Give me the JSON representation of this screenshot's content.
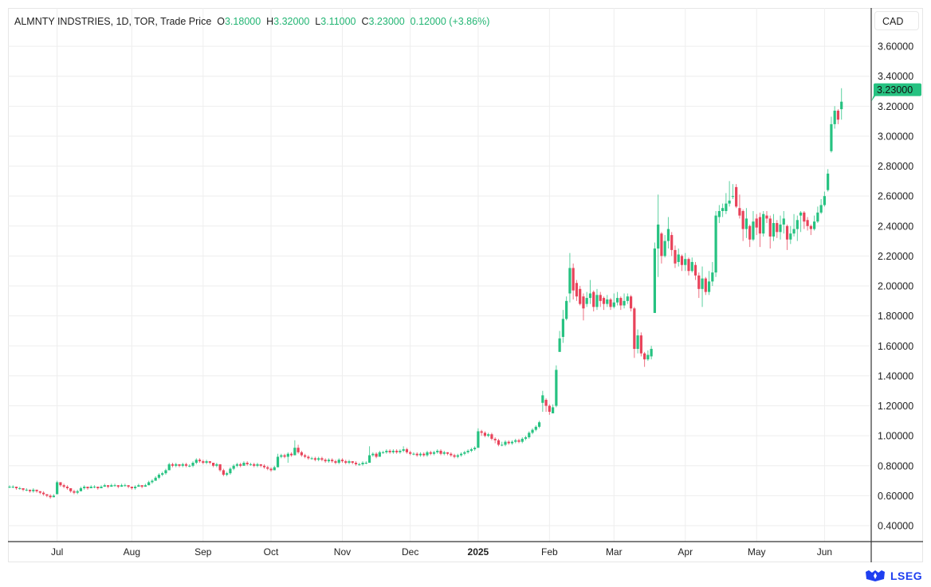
{
  "header": {
    "symbol": "ALMNTY INDSTRIES, 1D, TOR, Trade Price",
    "open_label": "O",
    "open": "3.18000",
    "high_label": "H",
    "high": "3.32000",
    "low_label": "L",
    "low": "3.11000",
    "close_label": "C",
    "close": "3.23000",
    "change": "0.12000 (+3.86%)"
  },
  "currency": "CAD",
  "brand": "LSEG",
  "colors": {
    "up": "#26c281",
    "down": "#e8435a",
    "grid": "#eeeeee",
    "axis": "#333333"
  },
  "chart_data": {
    "type": "candlestick",
    "title": "ALMNTY INDSTRIES, 1D, TOR, Trade Price",
    "ylabel": "CAD",
    "ylim": [
      0.3,
      3.75
    ],
    "y_ticks": [
      "0.40000",
      "0.60000",
      "0.80000",
      "1.00000",
      "1.20000",
      "1.40000",
      "1.60000",
      "1.80000",
      "2.00000",
      "2.20000",
      "2.40000",
      "2.60000",
      "2.80000",
      "3.00000",
      "3.20000",
      "3.40000",
      "3.60000"
    ],
    "x_ticks": [
      {
        "label": "Jul",
        "index": 14,
        "bold": false
      },
      {
        "label": "Aug",
        "index": 36,
        "bold": false
      },
      {
        "label": "Sep",
        "index": 57,
        "bold": false
      },
      {
        "label": "Oct",
        "index": 77,
        "bold": false
      },
      {
        "label": "Nov",
        "index": 98,
        "bold": false
      },
      {
        "label": "Dec",
        "index": 118,
        "bold": false
      },
      {
        "label": "2025",
        "index": 138,
        "bold": true
      },
      {
        "label": "Feb",
        "index": 159,
        "bold": false
      },
      {
        "label": "Mar",
        "index": 178,
        "bold": false
      },
      {
        "label": "Apr",
        "index": 199,
        "bold": false
      },
      {
        "label": "May",
        "index": 220,
        "bold": false
      },
      {
        "label": "Jun",
        "index": 240,
        "bold": false
      }
    ],
    "last_price": "3.23000",
    "last_value": 3.23,
    "ohlc": [
      [
        0.66,
        0.67,
        0.65,
        0.66
      ],
      [
        0.66,
        0.67,
        0.65,
        0.66
      ],
      [
        0.66,
        0.66,
        0.64,
        0.65
      ],
      [
        0.65,
        0.66,
        0.64,
        0.65
      ],
      [
        0.65,
        0.65,
        0.63,
        0.64
      ],
      [
        0.64,
        0.65,
        0.63,
        0.64
      ],
      [
        0.64,
        0.64,
        0.62,
        0.63
      ],
      [
        0.63,
        0.65,
        0.62,
        0.64
      ],
      [
        0.64,
        0.64,
        0.62,
        0.63
      ],
      [
        0.63,
        0.63,
        0.61,
        0.62
      ],
      [
        0.62,
        0.63,
        0.6,
        0.61
      ],
      [
        0.61,
        0.61,
        0.59,
        0.6
      ],
      [
        0.6,
        0.61,
        0.58,
        0.59
      ],
      [
        0.59,
        0.61,
        0.59,
        0.6
      ],
      [
        0.61,
        0.7,
        0.61,
        0.69
      ],
      [
        0.69,
        0.69,
        0.66,
        0.67
      ],
      [
        0.67,
        0.68,
        0.65,
        0.66
      ],
      [
        0.66,
        0.67,
        0.64,
        0.65
      ],
      [
        0.65,
        0.65,
        0.62,
        0.63
      ],
      [
        0.63,
        0.64,
        0.61,
        0.62
      ],
      [
        0.62,
        0.64,
        0.61,
        0.63
      ],
      [
        0.63,
        0.66,
        0.63,
        0.65
      ],
      [
        0.65,
        0.67,
        0.64,
        0.66
      ],
      [
        0.66,
        0.66,
        0.64,
        0.65
      ],
      [
        0.65,
        0.67,
        0.65,
        0.66
      ],
      [
        0.66,
        0.67,
        0.65,
        0.66
      ],
      [
        0.66,
        0.66,
        0.64,
        0.65
      ],
      [
        0.65,
        0.67,
        0.65,
        0.66
      ],
      [
        0.66,
        0.68,
        0.66,
        0.67
      ],
      [
        0.67,
        0.67,
        0.65,
        0.66
      ],
      [
        0.66,
        0.68,
        0.66,
        0.67
      ],
      [
        0.67,
        0.68,
        0.66,
        0.67
      ],
      [
        0.67,
        0.67,
        0.65,
        0.66
      ],
      [
        0.66,
        0.68,
        0.66,
        0.67
      ],
      [
        0.67,
        0.68,
        0.66,
        0.67
      ],
      [
        0.67,
        0.67,
        0.65,
        0.66
      ],
      [
        0.66,
        0.66,
        0.64,
        0.65
      ],
      [
        0.65,
        0.67,
        0.64,
        0.66
      ],
      [
        0.66,
        0.68,
        0.66,
        0.67
      ],
      [
        0.67,
        0.67,
        0.65,
        0.66
      ],
      [
        0.66,
        0.68,
        0.66,
        0.67
      ],
      [
        0.67,
        0.7,
        0.67,
        0.69
      ],
      [
        0.69,
        0.71,
        0.68,
        0.7
      ],
      [
        0.7,
        0.73,
        0.7,
        0.72
      ],
      [
        0.72,
        0.75,
        0.71,
        0.74
      ],
      [
        0.74,
        0.76,
        0.73,
        0.75
      ],
      [
        0.75,
        0.78,
        0.74,
        0.77
      ],
      [
        0.77,
        0.82,
        0.77,
        0.81
      ],
      [
        0.81,
        0.82,
        0.79,
        0.8
      ],
      [
        0.8,
        0.82,
        0.79,
        0.81
      ],
      [
        0.81,
        0.81,
        0.79,
        0.8
      ],
      [
        0.8,
        0.82,
        0.79,
        0.81
      ],
      [
        0.81,
        0.82,
        0.79,
        0.8
      ],
      [
        0.8,
        0.81,
        0.79,
        0.8
      ],
      [
        0.8,
        0.83,
        0.79,
        0.82
      ],
      [
        0.82,
        0.85,
        0.81,
        0.84
      ],
      [
        0.84,
        0.85,
        0.82,
        0.83
      ],
      [
        0.83,
        0.84,
        0.81,
        0.82
      ],
      [
        0.82,
        0.84,
        0.81,
        0.83
      ],
      [
        0.83,
        0.83,
        0.81,
        0.82
      ],
      [
        0.82,
        0.82,
        0.79,
        0.8
      ],
      [
        0.8,
        0.82,
        0.79,
        0.81
      ],
      [
        0.81,
        0.81,
        0.76,
        0.77
      ],
      [
        0.77,
        0.78,
        0.73,
        0.74
      ],
      [
        0.74,
        0.76,
        0.73,
        0.75
      ],
      [
        0.75,
        0.79,
        0.74,
        0.78
      ],
      [
        0.78,
        0.81,
        0.77,
        0.8
      ],
      [
        0.8,
        0.82,
        0.79,
        0.81
      ],
      [
        0.81,
        0.82,
        0.79,
        0.8
      ],
      [
        0.8,
        0.83,
        0.8,
        0.82
      ],
      [
        0.82,
        0.83,
        0.8,
        0.81
      ],
      [
        0.81,
        0.82,
        0.8,
        0.81
      ],
      [
        0.81,
        0.82,
        0.79,
        0.8
      ],
      [
        0.8,
        0.82,
        0.79,
        0.81
      ],
      [
        0.81,
        0.81,
        0.79,
        0.8
      ],
      [
        0.8,
        0.81,
        0.78,
        0.79
      ],
      [
        0.79,
        0.8,
        0.77,
        0.78
      ],
      [
        0.78,
        0.79,
        0.76,
        0.77
      ],
      [
        0.77,
        0.8,
        0.77,
        0.79
      ],
      [
        0.79,
        0.88,
        0.79,
        0.86
      ],
      [
        0.86,
        0.88,
        0.85,
        0.87
      ],
      [
        0.87,
        0.88,
        0.85,
        0.86
      ],
      [
        0.86,
        0.89,
        0.82,
        0.88
      ],
      [
        0.88,
        0.89,
        0.86,
        0.87
      ],
      [
        0.87,
        0.97,
        0.87,
        0.92
      ],
      [
        0.92,
        0.94,
        0.88,
        0.89
      ],
      [
        0.89,
        0.9,
        0.86,
        0.87
      ],
      [
        0.87,
        0.88,
        0.85,
        0.86
      ],
      [
        0.86,
        0.87,
        0.84,
        0.85
      ],
      [
        0.85,
        0.86,
        0.84,
        0.85
      ],
      [
        0.85,
        0.86,
        0.83,
        0.84
      ],
      [
        0.84,
        0.86,
        0.83,
        0.85
      ],
      [
        0.85,
        0.86,
        0.83,
        0.84
      ],
      [
        0.84,
        0.85,
        0.82,
        0.83
      ],
      [
        0.83,
        0.85,
        0.82,
        0.84
      ],
      [
        0.84,
        0.85,
        0.82,
        0.83
      ],
      [
        0.83,
        0.84,
        0.81,
        0.82
      ],
      [
        0.82,
        0.85,
        0.81,
        0.84
      ],
      [
        0.84,
        0.85,
        0.82,
        0.83
      ],
      [
        0.83,
        0.84,
        0.81,
        0.82
      ],
      [
        0.82,
        0.84,
        0.81,
        0.83
      ],
      [
        0.83,
        0.83,
        0.81,
        0.82
      ],
      [
        0.82,
        0.83,
        0.8,
        0.81
      ],
      [
        0.81,
        0.82,
        0.8,
        0.81
      ],
      [
        0.81,
        0.83,
        0.8,
        0.82
      ],
      [
        0.82,
        0.83,
        0.81,
        0.82
      ],
      [
        0.82,
        0.93,
        0.82,
        0.87
      ],
      [
        0.87,
        0.89,
        0.86,
        0.88
      ],
      [
        0.88,
        0.89,
        0.85,
        0.86
      ],
      [
        0.86,
        0.9,
        0.86,
        0.89
      ],
      [
        0.89,
        0.9,
        0.88,
        0.89
      ],
      [
        0.89,
        0.91,
        0.88,
        0.9
      ],
      [
        0.9,
        0.91,
        0.88,
        0.89
      ],
      [
        0.89,
        0.91,
        0.88,
        0.9
      ],
      [
        0.9,
        0.91,
        0.88,
        0.89
      ],
      [
        0.89,
        0.91,
        0.88,
        0.9
      ],
      [
        0.9,
        0.93,
        0.89,
        0.91
      ],
      [
        0.91,
        0.92,
        0.88,
        0.89
      ],
      [
        0.89,
        0.9,
        0.87,
        0.88
      ],
      [
        0.88,
        0.89,
        0.87,
        0.88
      ],
      [
        0.88,
        0.89,
        0.86,
        0.87
      ],
      [
        0.87,
        0.89,
        0.86,
        0.88
      ],
      [
        0.88,
        0.89,
        0.86,
        0.87
      ],
      [
        0.87,
        0.9,
        0.86,
        0.89
      ],
      [
        0.89,
        0.9,
        0.87,
        0.88
      ],
      [
        0.88,
        0.9,
        0.87,
        0.89
      ],
      [
        0.89,
        0.91,
        0.88,
        0.9
      ],
      [
        0.9,
        0.91,
        0.87,
        0.88
      ],
      [
        0.88,
        0.9,
        0.87,
        0.89
      ],
      [
        0.89,
        0.89,
        0.87,
        0.88
      ],
      [
        0.88,
        0.89,
        0.86,
        0.87
      ],
      [
        0.87,
        0.88,
        0.85,
        0.86
      ],
      [
        0.86,
        0.88,
        0.85,
        0.87
      ],
      [
        0.87,
        0.89,
        0.86,
        0.88
      ],
      [
        0.88,
        0.9,
        0.87,
        0.89
      ],
      [
        0.89,
        0.91,
        0.88,
        0.9
      ],
      [
        0.9,
        0.92,
        0.89,
        0.91
      ],
      [
        0.91,
        0.93,
        0.9,
        0.92
      ],
      [
        0.92,
        1.05,
        0.92,
        1.03
      ],
      [
        1.03,
        1.04,
        1.0,
        1.02
      ],
      [
        1.02,
        1.03,
        0.99,
        1.0
      ],
      [
        1.0,
        1.02,
        0.99,
        1.01
      ],
      [
        1.01,
        1.02,
        0.97,
        0.98
      ],
      [
        0.98,
        0.99,
        0.95,
        0.97
      ],
      [
        0.97,
        0.98,
        0.93,
        0.94
      ],
      [
        0.94,
        0.96,
        0.93,
        0.94
      ],
      [
        0.94,
        0.97,
        0.93,
        0.96
      ],
      [
        0.96,
        0.97,
        0.94,
        0.95
      ],
      [
        0.95,
        0.97,
        0.94,
        0.96
      ],
      [
        0.96,
        0.98,
        0.95,
        0.97
      ],
      [
        0.97,
        0.98,
        0.95,
        0.96
      ],
      [
        0.96,
        0.99,
        0.95,
        0.98
      ],
      [
        0.98,
        1.0,
        0.97,
        0.99
      ],
      [
        0.99,
        1.03,
        0.98,
        1.02
      ],
      [
        1.02,
        1.05,
        1.01,
        1.04
      ],
      [
        1.04,
        1.07,
        1.03,
        1.06
      ],
      [
        1.06,
        1.1,
        1.05,
        1.09
      ],
      [
        1.22,
        1.3,
        1.16,
        1.27
      ],
      [
        1.24,
        1.25,
        1.16,
        1.2
      ],
      [
        1.2,
        1.21,
        1.14,
        1.16
      ],
      [
        1.15,
        1.21,
        1.15,
        1.19
      ],
      [
        1.2,
        1.47,
        1.19,
        1.44
      ],
      [
        1.56,
        1.7,
        1.56,
        1.65
      ],
      [
        1.66,
        1.84,
        1.62,
        1.78
      ],
      [
        1.78,
        1.93,
        1.77,
        1.9
      ],
      [
        1.95,
        2.22,
        1.89,
        2.12
      ],
      [
        2.12,
        2.15,
        1.91,
        1.97
      ],
      [
        2.02,
        2.04,
        1.9,
        1.93
      ],
      [
        1.98,
        2.0,
        1.87,
        1.88
      ],
      [
        1.93,
        1.95,
        1.77,
        1.85
      ],
      [
        1.88,
        1.96,
        1.86,
        1.92
      ],
      [
        1.92,
        2.04,
        1.88,
        1.95
      ],
      [
        1.96,
        1.97,
        1.83,
        1.86
      ],
      [
        1.86,
        1.98,
        1.84,
        1.94
      ],
      [
        1.94,
        1.96,
        1.86,
        1.9
      ],
      [
        1.92,
        1.93,
        1.84,
        1.88
      ],
      [
        1.88,
        1.94,
        1.86,
        1.91
      ],
      [
        1.91,
        1.92,
        1.84,
        1.86
      ],
      [
        1.86,
        1.95,
        1.85,
        1.89
      ],
      [
        1.89,
        1.96,
        1.87,
        1.92
      ],
      [
        1.92,
        1.93,
        1.84,
        1.87
      ],
      [
        1.87,
        1.95,
        1.85,
        1.9
      ],
      [
        1.9,
        1.95,
        1.88,
        1.93
      ],
      [
        1.93,
        1.94,
        1.83,
        1.85
      ],
      [
        1.85,
        1.86,
        1.52,
        1.58
      ],
      [
        1.58,
        1.71,
        1.55,
        1.67
      ],
      [
        1.67,
        1.69,
        1.53,
        1.55
      ],
      [
        1.55,
        1.56,
        1.46,
        1.51
      ],
      [
        1.51,
        1.57,
        1.5,
        1.54
      ],
      [
        1.53,
        1.6,
        1.51,
        1.58
      ],
      [
        1.82,
        2.29,
        1.82,
        2.25
      ],
      [
        2.25,
        2.61,
        2.06,
        2.41
      ],
      [
        2.35,
        2.36,
        2.15,
        2.2
      ],
      [
        2.2,
        2.34,
        2.19,
        2.3
      ],
      [
        2.3,
        2.46,
        2.25,
        2.38
      ],
      [
        2.34,
        2.36,
        2.2,
        2.24
      ],
      [
        2.24,
        2.27,
        2.12,
        2.15
      ],
      [
        2.16,
        2.25,
        2.13,
        2.21
      ],
      [
        2.2,
        2.21,
        2.1,
        2.14
      ],
      [
        2.14,
        2.22,
        2.1,
        2.18
      ],
      [
        2.18,
        2.19,
        2.07,
        2.1
      ],
      [
        2.1,
        2.19,
        2.09,
        2.16
      ],
      [
        2.14,
        2.16,
        2.04,
        2.07
      ],
      [
        2.07,
        2.09,
        1.92,
        1.98
      ],
      [
        1.98,
        2.13,
        1.86,
        2.05
      ],
      [
        2.05,
        2.06,
        1.94,
        1.96
      ],
      [
        1.96,
        2.1,
        1.94,
        2.03
      ],
      [
        2.03,
        2.16,
        2.0,
        2.09
      ],
      [
        2.09,
        2.5,
        2.06,
        2.47
      ],
      [
        2.46,
        2.54,
        2.42,
        2.5
      ],
      [
        2.5,
        2.55,
        2.46,
        2.52
      ],
      [
        2.5,
        2.62,
        2.48,
        2.55
      ],
      [
        2.55,
        2.7,
        2.53,
        2.57
      ],
      [
        2.6,
        2.68,
        2.58,
        2.6
      ],
      [
        2.66,
        2.68,
        2.52,
        2.53
      ],
      [
        2.52,
        2.61,
        2.45,
        2.47
      ],
      [
        2.5,
        2.51,
        2.3,
        2.38
      ],
      [
        2.38,
        2.52,
        2.32,
        2.45
      ],
      [
        2.4,
        2.41,
        2.26,
        2.31
      ],
      [
        2.31,
        2.5,
        2.3,
        2.43
      ],
      [
        2.45,
        2.48,
        2.34,
        2.39
      ],
      [
        2.46,
        2.49,
        2.26,
        2.35
      ],
      [
        2.35,
        2.5,
        2.33,
        2.48
      ],
      [
        2.47,
        2.5,
        2.42,
        2.45
      ],
      [
        2.45,
        2.47,
        2.25,
        2.33
      ],
      [
        2.33,
        2.48,
        2.3,
        2.42
      ],
      [
        2.42,
        2.44,
        2.32,
        2.36
      ],
      [
        2.36,
        2.47,
        2.31,
        2.41
      ],
      [
        2.41,
        2.5,
        2.35,
        2.45
      ],
      [
        2.4,
        2.41,
        2.24,
        2.31
      ],
      [
        2.31,
        2.4,
        2.28,
        2.35
      ],
      [
        2.35,
        2.48,
        2.33,
        2.38
      ],
      [
        2.38,
        2.47,
        2.3,
        2.44
      ],
      [
        2.47,
        2.5,
        2.36,
        2.49
      ],
      [
        2.49,
        2.5,
        2.38,
        2.43
      ],
      [
        2.44,
        2.46,
        2.37,
        2.4
      ],
      [
        2.4,
        2.41,
        2.34,
        2.38
      ],
      [
        2.38,
        2.47,
        2.37,
        2.43
      ],
      [
        2.43,
        2.53,
        2.42,
        2.49
      ],
      [
        2.49,
        2.58,
        2.48,
        2.54
      ],
      [
        2.54,
        2.63,
        2.53,
        2.6
      ],
      [
        2.64,
        2.78,
        2.63,
        2.75
      ],
      [
        2.9,
        3.13,
        2.89,
        3.08
      ],
      [
        3.08,
        3.2,
        3.05,
        3.17
      ],
      [
        3.17,
        3.18,
        3.08,
        3.11
      ],
      [
        3.18,
        3.32,
        3.11,
        3.23
      ]
    ]
  }
}
